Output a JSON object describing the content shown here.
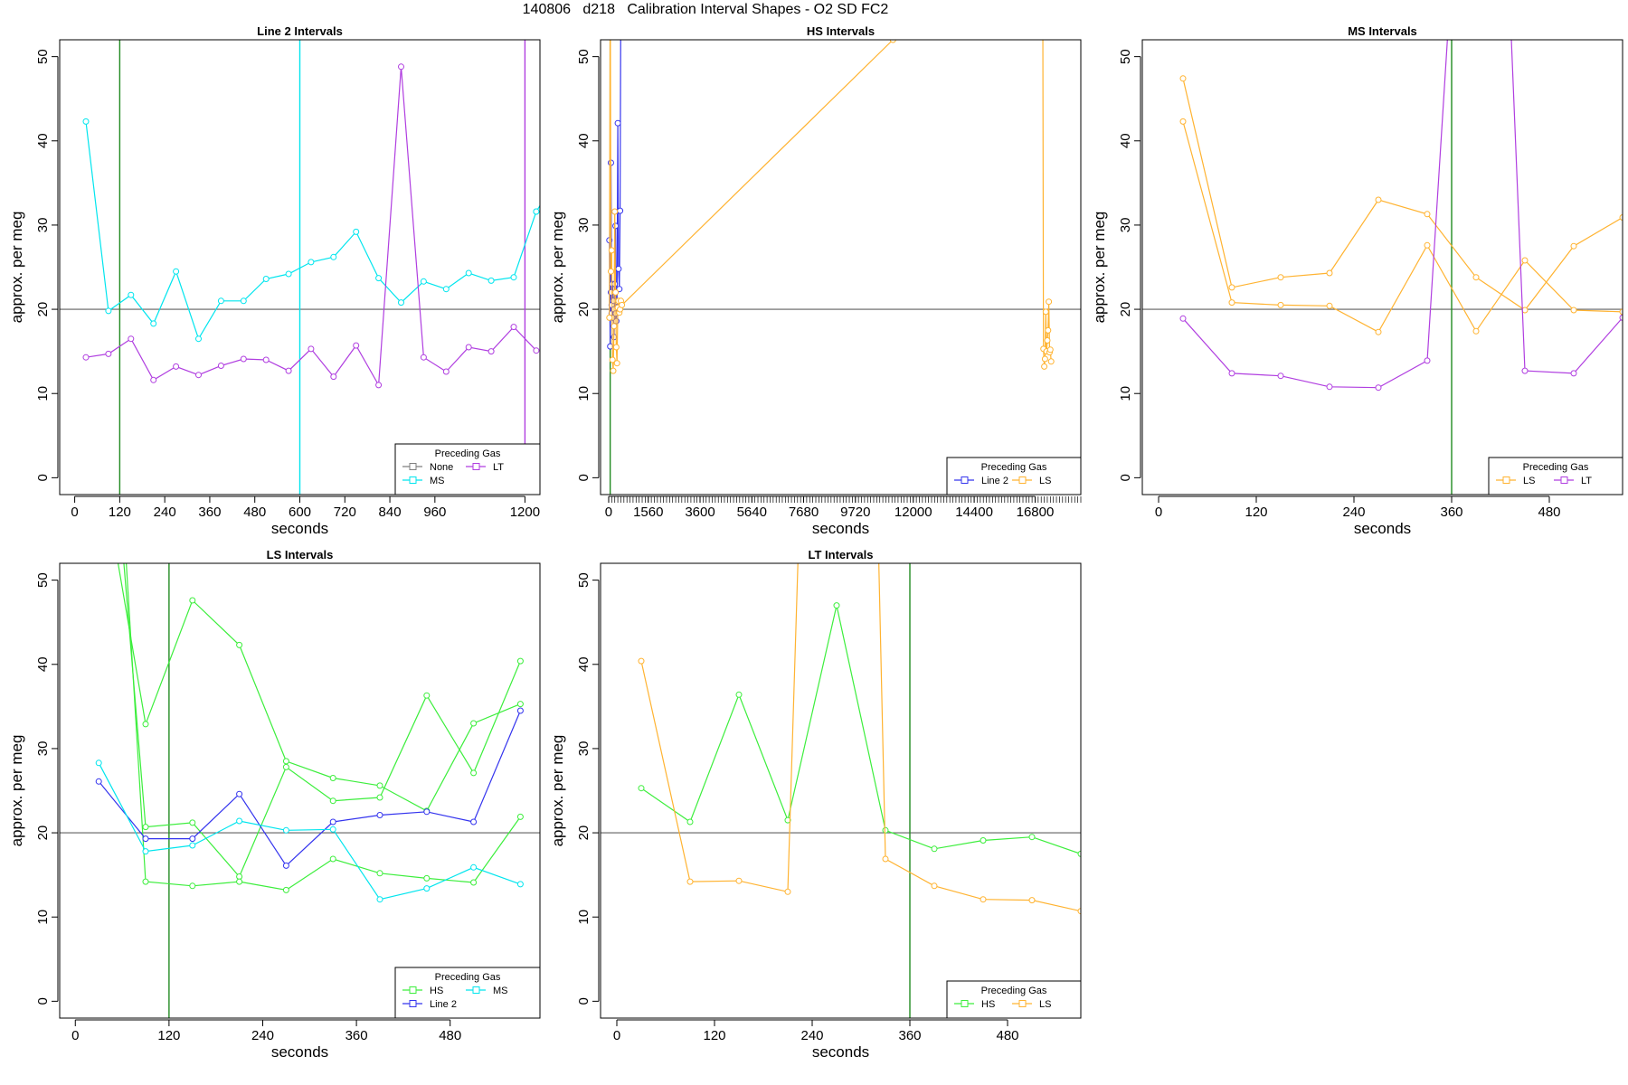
{
  "figure": {
    "supertitle": "140806   d218   Calibration Interval Shapes - O2 SD FC2"
  },
  "colors": {
    "None": "#7f7f7f",
    "MS": "#00e5ee",
    "LT": "#b03ee0",
    "Line 2": "#3434ee",
    "LS": "#ffb331",
    "HS": "#3cee3c",
    "ref_line": "#606060",
    "vline_green": "#228b22"
  },
  "chart_data": [
    {
      "type": "line",
      "title": "Line 2 Intervals",
      "xlabel": "seconds",
      "ylabel": "approx. per meg",
      "xlim": [
        -40,
        1240
      ],
      "ylim": [
        -2,
        52
      ],
      "xticks": [
        0,
        120,
        240,
        360,
        480,
        600,
        720,
        840,
        960,
        1200
      ],
      "yticks": [
        0,
        10,
        20,
        30,
        40,
        50
      ],
      "hline": 20,
      "vlines": [
        {
          "x": 120,
          "color": "#228b22"
        },
        {
          "x": 600,
          "color": "#00e5ee"
        },
        {
          "x": 1200,
          "color": "#b03ee0"
        }
      ],
      "legend": {
        "title": "Preceding Gas",
        "position": "bottom-right",
        "entries": [
          "None",
          "LT",
          "MS"
        ],
        "columns": 2
      },
      "series": [
        {
          "name": "MS",
          "x": [
            30,
            90,
            150,
            210,
            270,
            330,
            390,
            450,
            510,
            570,
            630,
            690,
            750,
            810,
            870,
            930,
            990,
            1050,
            1110,
            1170,
            1230
          ],
          "y": [
            42.3,
            19.8,
            21.7,
            18.3,
            24.5,
            16.5,
            21.0,
            21.0,
            23.6,
            24.2,
            25.6,
            26.2,
            29.2,
            23.7,
            20.8,
            23.3,
            22.4,
            24.3,
            23.4,
            23.8,
            31.6
          ]
        },
        {
          "name": "MS",
          "x": [
            1230,
            1250
          ],
          "y": [
            31.6,
            33.0
          ]
        },
        {
          "name": "LT",
          "x": [
            30,
            90,
            150,
            210,
            270,
            330,
            390,
            450,
            510,
            570,
            630,
            690,
            750,
            810,
            870,
            930,
            990,
            1050,
            1110,
            1170,
            1230
          ],
          "y": [
            14.3,
            14.7,
            16.5,
            11.6,
            13.2,
            12.2,
            13.3,
            14.1,
            14.0,
            12.7,
            15.3,
            12.0,
            15.7,
            11.0,
            48.8,
            14.3,
            12.6,
            15.5,
            15.0,
            17.9,
            15.1
          ]
        }
      ]
    },
    {
      "type": "line",
      "title": "HS Intervals",
      "xlabel": "seconds",
      "ylabel": "approx. per meg",
      "xlim": [
        -320,
        18600
      ],
      "ylim": [
        -2,
        52
      ],
      "xticks": [
        0,
        1560,
        3600,
        5640,
        7680,
        9720,
        12000,
        14400,
        16800
      ],
      "minor_xticks": {
        "start": 0,
        "end": 18600,
        "step": 120
      },
      "yticks": [
        0,
        10,
        20,
        30,
        40,
        50
      ],
      "hline": 20,
      "vlines": [
        {
          "x": 60,
          "color": "#228b22"
        }
      ],
      "legend": {
        "title": "Preceding Gas",
        "position": "bottom-right",
        "entries": [
          "Line 2",
          "LS"
        ],
        "columns": 2
      },
      "series": [
        {
          "name": "Line 2",
          "x": [
            30,
            60,
            90,
            120,
            150,
            180,
            210,
            240,
            270,
            300,
            330,
            360,
            390,
            420,
            450,
            480
          ],
          "y": [
            28.2,
            15.6,
            37.4,
            19.5,
            23.0,
            20.8,
            16.7,
            19.7,
            29.9,
            18.6,
            20.9,
            42.1,
            24.8,
            22.4,
            31.7,
            60.0
          ]
        },
        {
          "name": "Line 2",
          "x": [
            90,
            120,
            150,
            180,
            210,
            240,
            270
          ],
          "y": [
            22.0,
            20.5,
            19.0,
            21.0,
            20.0,
            23.0,
            19.5
          ]
        },
        {
          "name": "LS",
          "x": [
            30,
            60,
            90,
            120,
            150,
            180,
            210,
            240,
            270,
            300,
            330,
            360,
            390,
            420,
            450,
            480,
            520,
            11200
          ],
          "y": [
            19.0,
            60.0,
            24.5,
            27.0,
            14.0,
            12.7,
            18.0,
            31.6,
            22.0,
            15.5,
            13.6,
            20.2,
            21.0,
            19.6,
            20.0,
            21.0,
            20.5,
            52.0
          ]
        },
        {
          "name": "LS",
          "x": [
            17100,
            17130,
            17160,
            17190,
            17220,
            17250,
            17280,
            17310,
            17340,
            17370,
            17400,
            17430
          ],
          "y": [
            60.0,
            15.3,
            13.2,
            14.1,
            19.7,
            15.0,
            16.3,
            17.5,
            20.9,
            14.9,
            15.2,
            13.8
          ]
        }
      ]
    },
    {
      "type": "line",
      "title": "MS Intervals",
      "xlabel": "seconds",
      "ylabel": "approx. per meg",
      "xlim": [
        -20,
        570
      ],
      "ylim": [
        -2,
        52
      ],
      "xticks": [
        0,
        120,
        240,
        360,
        480
      ],
      "yticks": [
        0,
        10,
        20,
        30,
        40,
        50
      ],
      "hline": 20,
      "vlines": [
        {
          "x": 360,
          "color": "#228b22"
        }
      ],
      "legend": {
        "title": "Preceding Gas",
        "position": "bottom-right",
        "entries": [
          "LS",
          "LT"
        ],
        "columns": 2
      },
      "series": [
        {
          "name": "LS",
          "x": [
            30,
            90,
            150,
            210,
            270,
            330,
            390,
            450,
            510,
            570
          ],
          "y": [
            47.4,
            22.6,
            23.8,
            24.3,
            33.0,
            31.3,
            23.8,
            19.9,
            27.5,
            30.9
          ]
        },
        {
          "name": "LS",
          "x": [
            30,
            90,
            150,
            210,
            270,
            330,
            390,
            450,
            510,
            570
          ],
          "y": [
            42.3,
            20.8,
            20.5,
            20.4,
            17.3,
            27.6,
            17.4,
            25.8,
            19.9,
            19.7
          ]
        },
        {
          "name": "LT",
          "x": [
            30,
            90,
            150,
            210,
            270,
            330,
            360,
            430,
            450,
            510,
            570
          ],
          "y": [
            18.9,
            12.4,
            12.1,
            10.8,
            10.7,
            13.9,
            60.0,
            60.0,
            12.7,
            12.4,
            19.0
          ]
        }
      ]
    },
    {
      "type": "line",
      "title": "LS Intervals",
      "xlabel": "seconds",
      "ylabel": "approx. per meg",
      "xlim": [
        -20,
        595
      ],
      "ylim": [
        -2,
        52
      ],
      "xticks": [
        0,
        120,
        240,
        360,
        480
      ],
      "yticks": [
        0,
        10,
        20,
        30,
        40,
        50
      ],
      "hline": 20,
      "vlines": [
        {
          "x": 120,
          "color": "#228b22"
        }
      ],
      "legend": {
        "title": "Preceding Gas",
        "position": "bottom-right",
        "entries": [
          "HS",
          "MS",
          "Line 2"
        ],
        "columns": 2
      },
      "series": [
        {
          "name": "HS",
          "x": [
            40,
            90,
            150,
            210,
            270,
            330,
            390,
            450,
            510,
            570
          ],
          "y": [
            60.0,
            32.9,
            47.6,
            42.3,
            28.5,
            26.5,
            25.6,
            22.6,
            33.0,
            35.3
          ]
        },
        {
          "name": "HS",
          "x": [
            55,
            90,
            150,
            210,
            270,
            330,
            390,
            450,
            510,
            570
          ],
          "y": [
            60.0,
            20.7,
            21.2,
            14.8,
            27.8,
            23.8,
            24.2,
            36.3,
            27.1,
            40.4
          ]
        },
        {
          "name": "HS",
          "x": [
            60,
            90,
            150,
            210,
            270,
            330,
            390,
            450,
            510,
            570
          ],
          "y": [
            60.0,
            14.2,
            13.7,
            14.2,
            13.2,
            16.9,
            15.2,
            14.6,
            14.1,
            21.9
          ]
        },
        {
          "name": "Line 2",
          "x": [
            30,
            90,
            150,
            210,
            270,
            330,
            390,
            450,
            510,
            570
          ],
          "y": [
            26.1,
            19.3,
            19.3,
            24.6,
            16.1,
            21.3,
            22.1,
            22.5,
            21.3,
            34.5
          ]
        },
        {
          "name": "MS",
          "x": [
            30,
            90,
            150,
            210,
            270,
            330,
            390,
            450,
            510,
            570
          ],
          "y": [
            28.3,
            17.8,
            18.5,
            21.4,
            20.3,
            20.4,
            12.1,
            13.4,
            15.9,
            13.9
          ]
        }
      ]
    },
    {
      "type": "line",
      "title": "LT Intervals",
      "xlabel": "seconds",
      "ylabel": "approx. per meg",
      "xlim": [
        -20,
        570
      ],
      "ylim": [
        -2,
        52
      ],
      "xticks": [
        0,
        120,
        240,
        360,
        480
      ],
      "yticks": [
        0,
        10,
        20,
        30,
        40,
        50
      ],
      "hline": 20,
      "vlines": [
        {
          "x": 360,
          "color": "#228b22"
        }
      ],
      "legend": {
        "title": "Preceding Gas",
        "position": "bottom-right",
        "entries": [
          "HS",
          "LS"
        ],
        "columns": 2
      },
      "series": [
        {
          "name": "HS",
          "x": [
            30,
            90,
            150,
            210,
            270,
            330,
            390,
            450,
            510,
            570
          ],
          "y": [
            25.3,
            21.3,
            36.4,
            21.5,
            47.0,
            20.3,
            18.1,
            19.1,
            19.5,
            17.5
          ]
        },
        {
          "name": "LS",
          "x": [
            30,
            90,
            150,
            210,
            225,
            320,
            330,
            390,
            450,
            510,
            570
          ],
          "y": [
            40.4,
            14.2,
            14.3,
            13.0,
            60.0,
            60.0,
            16.9,
            13.7,
            12.1,
            12.0,
            10.7
          ]
        }
      ]
    }
  ]
}
